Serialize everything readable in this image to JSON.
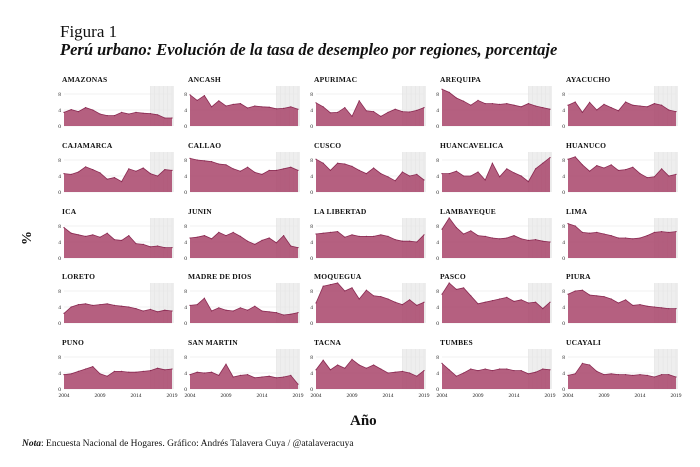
{
  "figure": {
    "label": "Figura 1",
    "title": "Perú urbano: Evolución de la tasa de desempleo por regiones, porcentaje",
    "y_unit": "%",
    "x_unit": "Año",
    "note_prefix": "Nota",
    "note_text": ": Encuesta Nacional de Hogares. Gráfico: Andrés Talavera Cuya  /  @atalaveracuya"
  },
  "chart_data": {
    "type": "area",
    "years": [
      2004,
      2005,
      2006,
      2007,
      2008,
      2009,
      2010,
      2011,
      2012,
      2013,
      2014,
      2015,
      2016,
      2017,
      2018,
      2019
    ],
    "xticks": [
      "2004",
      "2009",
      "2014",
      "2019"
    ],
    "yticks": [
      "0",
      "4",
      "8"
    ],
    "ylim": [
      0,
      10
    ],
    "shaded_period": [
      2016,
      2019
    ],
    "fill_color": "#a8446a",
    "line_color": "#8a2a52",
    "shade_color": "#eeeeee",
    "regions": [
      {
        "name": "AMAZONAS",
        "values": [
          3.4,
          4.1,
          3.6,
          4.6,
          4.0,
          3.0,
          2.6,
          2.6,
          3.4,
          3.0,
          3.4,
          3.2,
          3.1,
          2.8,
          2.0,
          2.0
        ]
      },
      {
        "name": "ANCASH",
        "values": [
          7.8,
          6.4,
          7.6,
          4.8,
          6.3,
          5.0,
          5.4,
          5.6,
          4.5,
          5.0,
          4.8,
          4.7,
          4.3,
          4.4,
          4.8,
          4.2
        ]
      },
      {
        "name": "APURIMAC",
        "values": [
          5.8,
          4.8,
          3.3,
          3.4,
          4.6,
          2.4,
          6.3,
          3.8,
          3.6,
          2.4,
          3.4,
          4.2,
          3.6,
          3.5,
          3.9,
          4.6
        ]
      },
      {
        "name": "AREQUIPA",
        "values": [
          9.2,
          8.4,
          7.0,
          6.2,
          5.2,
          6.4,
          5.6,
          5.6,
          5.4,
          5.6,
          5.2,
          4.8,
          5.6,
          5.0,
          4.6,
          4.2
        ]
      },
      {
        "name": "AYACUCHO",
        "values": [
          5.2,
          6.0,
          3.4,
          5.9,
          4.0,
          5.4,
          4.6,
          3.8,
          6.0,
          5.2,
          5.0,
          4.8,
          5.6,
          5.2,
          4.0,
          3.6
        ]
      },
      {
        "name": "CAJAMARCA",
        "values": [
          4.6,
          4.4,
          5.0,
          6.3,
          5.6,
          4.8,
          3.2,
          3.6,
          2.6,
          5.8,
          5.2,
          6.0,
          4.6,
          4.0,
          5.6,
          5.4
        ]
      },
      {
        "name": "CALLAO",
        "values": [
          8.4,
          8.0,
          7.8,
          7.6,
          7.0,
          6.8,
          5.8,
          5.2,
          6.2,
          4.9,
          4.4,
          5.4,
          5.4,
          5.8,
          6.2,
          5.4
        ]
      },
      {
        "name": "CUSCO",
        "values": [
          8.2,
          7.2,
          5.4,
          7.2,
          7.0,
          6.4,
          5.4,
          4.6,
          6.0,
          4.6,
          3.8,
          2.8,
          5.0,
          4.0,
          4.4,
          3.0
        ]
      },
      {
        "name": "HUANCAVELICA",
        "values": [
          4.6,
          4.6,
          5.2,
          4.0,
          4.0,
          5.0,
          3.0,
          7.2,
          3.8,
          5.8,
          4.8,
          4.0,
          2.6,
          5.8,
          7.2,
          8.6
        ]
      },
      {
        "name": "HUANUCO",
        "values": [
          8.2,
          8.8,
          6.8,
          5.2,
          6.6,
          6.0,
          6.8,
          5.4,
          5.6,
          6.2,
          4.6,
          3.6,
          3.8,
          5.8,
          4.0,
          4.4
        ]
      },
      {
        "name": "ICA",
        "values": [
          7.6,
          6.2,
          5.8,
          5.4,
          5.8,
          5.2,
          6.2,
          4.6,
          4.4,
          5.6,
          3.6,
          3.4,
          2.8,
          3.0,
          2.6,
          2.6
        ]
      },
      {
        "name": "JUNIN",
        "values": [
          5.0,
          5.2,
          5.6,
          4.8,
          6.4,
          5.6,
          6.4,
          5.4,
          4.2,
          3.4,
          4.4,
          5.0,
          3.8,
          5.6,
          3.0,
          2.6
        ]
      },
      {
        "name": "LA LIBERTAD",
        "values": [
          6.0,
          6.2,
          6.4,
          6.6,
          5.2,
          5.8,
          5.4,
          5.4,
          5.4,
          5.8,
          5.4,
          4.6,
          4.2,
          4.2,
          4.0,
          5.8
        ]
      },
      {
        "name": "LAMBAYEQUE",
        "values": [
          7.2,
          10.0,
          7.6,
          6.0,
          6.8,
          5.6,
          5.4,
          5.0,
          4.8,
          5.0,
          5.6,
          4.8,
          4.4,
          4.6,
          4.2,
          4.0
        ]
      },
      {
        "name": "LIMA",
        "values": [
          8.6,
          8.0,
          6.4,
          6.2,
          6.4,
          6.0,
          5.6,
          5.0,
          5.0,
          4.8,
          5.0,
          5.6,
          6.4,
          6.6,
          6.4,
          6.6
        ]
      },
      {
        "name": "LORETO",
        "values": [
          2.4,
          4.0,
          4.6,
          4.8,
          4.4,
          4.6,
          4.8,
          4.4,
          4.2,
          4.0,
          3.6,
          3.0,
          3.4,
          2.8,
          3.2,
          3.0
        ]
      },
      {
        "name": "MADRE DE DIOS",
        "values": [
          4.4,
          4.6,
          6.2,
          3.0,
          3.8,
          3.2,
          3.0,
          3.8,
          3.2,
          4.2,
          3.0,
          2.8,
          2.6,
          2.0,
          2.2,
          2.6
        ]
      },
      {
        "name": "MOQUEGUA",
        "values": [
          5.0,
          9.2,
          9.6,
          11.6,
          8.0,
          8.8,
          6.0,
          8.2,
          6.8,
          6.6,
          6.0,
          5.2,
          4.6,
          5.8,
          4.4,
          5.2
        ]
      },
      {
        "name": "PASCO",
        "values": [
          7.2,
          10.2,
          8.4,
          8.8,
          6.8,
          4.8,
          5.2,
          5.6,
          6.0,
          6.4,
          5.4,
          5.8,
          5.0,
          5.2,
          3.6,
          5.2
        ]
      },
      {
        "name": "PIURA",
        "values": [
          7.2,
          8.0,
          8.2,
          7.0,
          6.8,
          6.6,
          6.0,
          5.0,
          5.8,
          4.4,
          4.6,
          4.2,
          4.0,
          3.8,
          3.6,
          3.6
        ]
      },
      {
        "name": "PUNO",
        "values": [
          3.6,
          3.8,
          4.4,
          5.0,
          5.6,
          3.8,
          3.2,
          4.4,
          4.4,
          4.2,
          4.2,
          4.4,
          4.6,
          5.2,
          4.8,
          5.0
        ]
      },
      {
        "name": "SAN MARTIN",
        "values": [
          3.6,
          4.2,
          4.0,
          4.2,
          3.4,
          6.2,
          3.0,
          3.4,
          3.6,
          2.8,
          3.0,
          3.2,
          2.8,
          3.0,
          3.4,
          1.2
        ]
      },
      {
        "name": "TACNA",
        "values": [
          4.8,
          7.2,
          4.8,
          6.0,
          5.2,
          7.4,
          6.0,
          5.2,
          6.0,
          5.0,
          4.0,
          4.2,
          4.4,
          4.0,
          3.2,
          4.6
        ]
      },
      {
        "name": "TUMBES",
        "values": [
          6.4,
          4.8,
          3.2,
          4.0,
          5.0,
          4.6,
          5.0,
          4.6,
          5.0,
          5.0,
          4.6,
          4.6,
          3.8,
          4.2,
          5.0,
          4.8
        ]
      },
      {
        "name": "UCAYALI",
        "values": [
          3.4,
          3.8,
          6.4,
          6.0,
          4.4,
          3.6,
          3.8,
          3.6,
          3.6,
          3.4,
          3.6,
          3.4,
          3.0,
          3.6,
          3.6,
          3.0
        ]
      }
    ]
  }
}
